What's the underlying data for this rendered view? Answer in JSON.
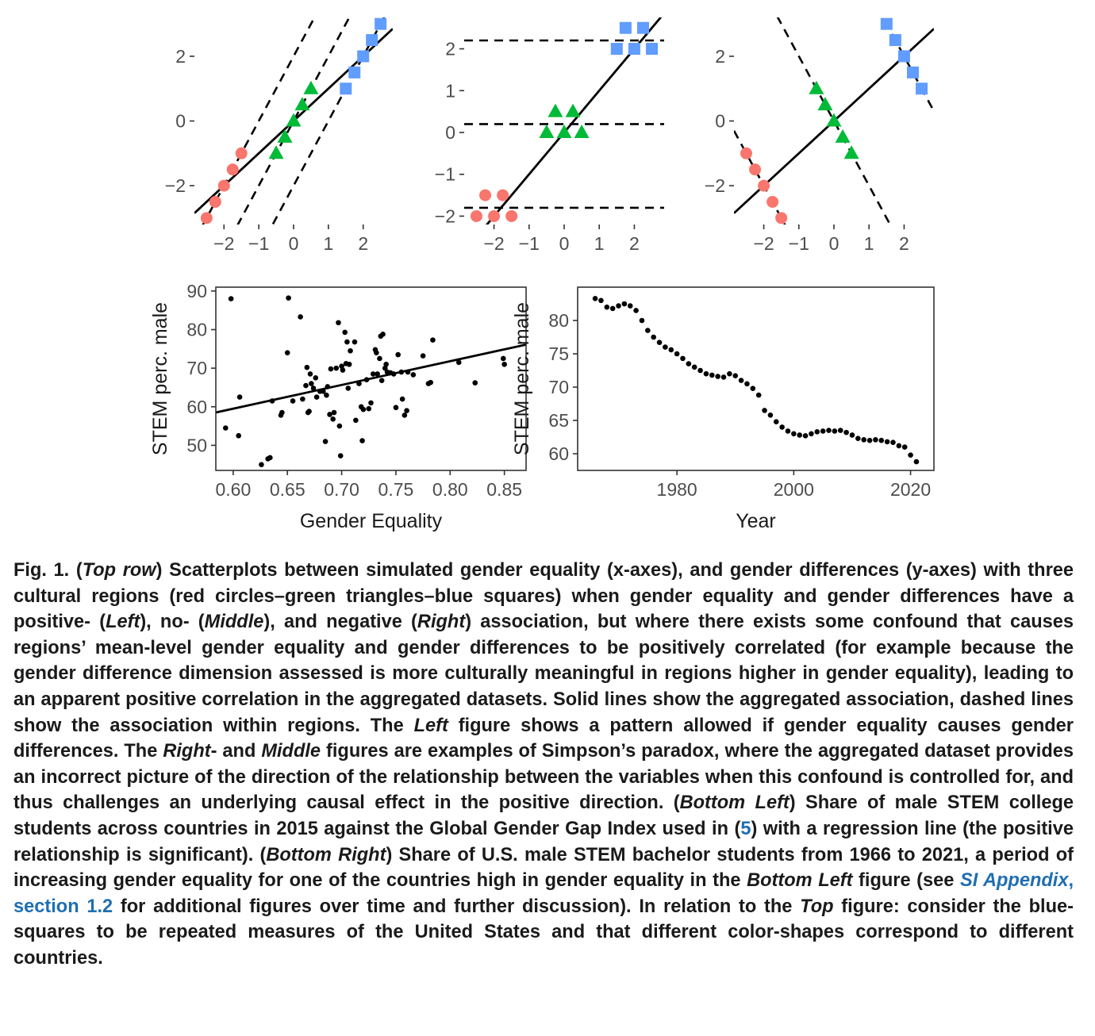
{
  "chart_data": [
    {
      "type": "scatter",
      "panel": "top-left",
      "title": "",
      "xlabel": "",
      "ylabel": "",
      "xlim": [
        -2.85,
        2.85
      ],
      "ylim": [
        -3.2,
        3.2
      ],
      "x_ticks": [
        "−2",
        "−1",
        "0",
        "1",
        "2"
      ],
      "x_tick_values": [
        -2,
        -1,
        0,
        1,
        2
      ],
      "y_ticks": [
        "−2",
        "0",
        "2"
      ],
      "y_tick_values": [
        -2,
        0,
        2
      ],
      "grid": false,
      "series": [
        {
          "shape": "circle",
          "color": "#f8766d",
          "x": [
            -2.5,
            -2.25,
            -2.0,
            -1.75,
            -1.5
          ],
          "y": [
            -3.0,
            -2.5,
            -2.0,
            -1.5,
            -1.0
          ]
        },
        {
          "shape": "triangle",
          "color": "#00ba38",
          "x": [
            -0.5,
            -0.25,
            0.0,
            0.25,
            0.5
          ],
          "y": [
            -1.0,
            -0.5,
            0.0,
            0.5,
            1.0
          ]
        },
        {
          "shape": "square",
          "color": "#619cff",
          "x": [
            1.5,
            1.75,
            2.0,
            2.25,
            2.5
          ],
          "y": [
            1.0,
            1.5,
            2.0,
            2.5,
            3.0
          ]
        }
      ],
      "solid_lines": [
        {
          "slope": 1.0,
          "intercept": 0.0
        }
      ],
      "dashed_lines": [
        {
          "slope": 2.0,
          "intercept": 2.0
        },
        {
          "slope": 2.0,
          "intercept": 0.0
        },
        {
          "slope": 2.0,
          "intercept": -2.0
        }
      ]
    },
    {
      "type": "scatter",
      "panel": "top-middle",
      "title": "",
      "xlabel": "",
      "ylabel": "",
      "xlim": [
        -2.85,
        2.85
      ],
      "ylim": [
        -2.2,
        2.75
      ],
      "x_ticks": [
        "−2",
        "−1",
        "0",
        "1",
        "2"
      ],
      "x_tick_values": [
        -2,
        -1,
        0,
        1,
        2
      ],
      "y_ticks": [
        "−2",
        "−1",
        "0",
        "1",
        "2"
      ],
      "y_tick_values": [
        -2,
        -1,
        0,
        1,
        2
      ],
      "grid": false,
      "series": [
        {
          "shape": "circle",
          "color": "#f8766d",
          "x": [
            -2.5,
            -2.25,
            -2.0,
            -1.75,
            -1.5
          ],
          "y": [
            -2.0,
            -1.5,
            -2.0,
            -1.5,
            -2.0
          ]
        },
        {
          "shape": "triangle",
          "color": "#00ba38",
          "x": [
            -0.5,
            -0.25,
            0.0,
            0.25,
            0.5
          ],
          "y": [
            0.0,
            0.5,
            0.0,
            0.5,
            0.0
          ]
        },
        {
          "shape": "square",
          "color": "#619cff",
          "x": [
            1.5,
            1.75,
            2.0,
            2.25,
            2.5
          ],
          "y": [
            2.0,
            2.5,
            2.0,
            2.5,
            2.0
          ]
        }
      ],
      "solid_lines": [
        {
          "slope": 1.0,
          "intercept": 0.0
        }
      ],
      "dashed_lines": [
        {
          "slope": 0.0,
          "intercept": -1.8
        },
        {
          "slope": 0.0,
          "intercept": 0.2
        },
        {
          "slope": 0.0,
          "intercept": 2.2
        }
      ]
    },
    {
      "type": "scatter",
      "panel": "top-right",
      "title": "",
      "xlabel": "",
      "ylabel": "",
      "xlim": [
        -2.85,
        2.85
      ],
      "ylim": [
        -3.2,
        3.2
      ],
      "x_ticks": [
        "−2",
        "−1",
        "0",
        "1",
        "2"
      ],
      "x_tick_values": [
        -2,
        -1,
        0,
        1,
        2
      ],
      "y_ticks": [
        "−2",
        "0",
        "2"
      ],
      "y_tick_values": [
        -2,
        0,
        2
      ],
      "grid": false,
      "series": [
        {
          "shape": "circle",
          "color": "#f8766d",
          "x": [
            -2.5,
            -2.25,
            -2.0,
            -1.75,
            -1.5
          ],
          "y": [
            -1.0,
            -1.5,
            -2.0,
            -2.5,
            -3.0
          ]
        },
        {
          "shape": "triangle",
          "color": "#00ba38",
          "x": [
            -0.5,
            -0.25,
            0.0,
            0.25,
            0.5
          ],
          "y": [
            1.0,
            0.5,
            0.0,
            -0.5,
            -1.0
          ]
        },
        {
          "shape": "square",
          "color": "#619cff",
          "x": [
            1.5,
            1.75,
            2.0,
            2.25,
            2.5
          ],
          "y": [
            3.0,
            2.5,
            2.0,
            1.5,
            1.0
          ]
        }
      ],
      "solid_lines": [
        {
          "slope": 1.0,
          "intercept": 0.0
        }
      ],
      "dashed_lines": [
        {
          "slope": -2.0,
          "intercept": -6.0
        },
        {
          "slope": -2.0,
          "intercept": 0.0
        },
        {
          "slope": -2.0,
          "intercept": 6.0
        }
      ]
    },
    {
      "type": "scatter",
      "panel": "bottom-left",
      "title": "",
      "xlabel": "Gender Equality",
      "ylabel": "STEM perc. male",
      "xlim": [
        0.584,
        0.87
      ],
      "ylim": [
        43.5,
        91
      ],
      "x_ticks": [
        "0.60",
        "0.65",
        "0.70",
        "0.75",
        "0.80",
        "0.85"
      ],
      "x_tick_values": [
        0.6,
        0.65,
        0.7,
        0.75,
        0.8,
        0.85
      ],
      "y_ticks": [
        "50",
        "60",
        "70",
        "80",
        "90"
      ],
      "y_tick_values": [
        50,
        60,
        70,
        80,
        90
      ],
      "grid": false,
      "series": [
        {
          "shape": "dot",
          "color": "#000000",
          "points": [
            [
              0.598,
              88.0
            ],
            [
              0.593,
              54.5
            ],
            [
              0.605,
              52.5
            ],
            [
              0.606,
              62.5
            ],
            [
              0.626,
              45.0
            ],
            [
              0.632,
              46.5
            ],
            [
              0.634,
              46.8
            ],
            [
              0.636,
              61.5
            ],
            [
              0.644,
              57.8
            ],
            [
              0.645,
              58.5
            ],
            [
              0.65,
              74.0
            ],
            [
              0.651,
              88.2
            ],
            [
              0.655,
              61.5
            ],
            [
              0.662,
              83.3
            ],
            [
              0.664,
              62.0
            ],
            [
              0.667,
              65.5
            ],
            [
              0.668,
              70.2
            ],
            [
              0.669,
              58.5
            ],
            [
              0.67,
              58.8
            ],
            [
              0.671,
              68.5
            ],
            [
              0.672,
              66.0
            ],
            [
              0.674,
              64.8
            ],
            [
              0.676,
              67.5
            ],
            [
              0.677,
              62.5
            ],
            [
              0.68,
              64.0
            ],
            [
              0.683,
              64.0
            ],
            [
              0.685,
              51.0
            ],
            [
              0.686,
              63.0
            ],
            [
              0.687,
              65.2
            ],
            [
              0.689,
              58.0
            ],
            [
              0.69,
              69.8
            ],
            [
              0.692,
              56.8
            ],
            [
              0.693,
              58.5
            ],
            [
              0.695,
              70.0
            ],
            [
              0.697,
              81.8
            ],
            [
              0.698,
              55.0
            ],
            [
              0.699,
              47.3
            ],
            [
              0.7,
              70.5
            ],
            [
              0.701,
              69.5
            ],
            [
              0.703,
              79.3
            ],
            [
              0.704,
              71.2
            ],
            [
              0.705,
              76.8
            ],
            [
              0.706,
              64.8
            ],
            [
              0.707,
              71.0
            ],
            [
              0.708,
              74.5
            ],
            [
              0.712,
              76.8
            ],
            [
              0.713,
              56.5
            ],
            [
              0.716,
              66.0
            ],
            [
              0.718,
              60.0
            ],
            [
              0.719,
              51.2
            ],
            [
              0.72,
              59.3
            ],
            [
              0.723,
              67.0
            ],
            [
              0.725,
              59.5
            ],
            [
              0.727,
              61.0
            ],
            [
              0.729,
              68.5
            ],
            [
              0.731,
              74.8
            ],
            [
              0.732,
              74.0
            ],
            [
              0.733,
              68.5
            ],
            [
              0.735,
              72.5
            ],
            [
              0.736,
              78.3
            ],
            [
              0.737,
              66.8
            ],
            [
              0.738,
              78.8
            ],
            [
              0.74,
              70.0
            ],
            [
              0.741,
              71.0
            ],
            [
              0.742,
              69.0
            ],
            [
              0.745,
              68.8
            ],
            [
              0.748,
              68.5
            ],
            [
              0.75,
              59.8
            ],
            [
              0.752,
              73.5
            ],
            [
              0.755,
              69.0
            ],
            [
              0.756,
              62.0
            ],
            [
              0.758,
              57.8
            ],
            [
              0.76,
              59.0
            ],
            [
              0.761,
              69.0
            ],
            [
              0.766,
              68.3
            ],
            [
              0.775,
              73.2
            ],
            [
              0.78,
              66.0
            ],
            [
              0.782,
              66.3
            ],
            [
              0.784,
              77.3
            ],
            [
              0.808,
              71.5
            ],
            [
              0.823,
              66.2
            ],
            [
              0.849,
              72.5
            ],
            [
              0.85,
              71.0
            ]
          ]
        }
      ],
      "solid_lines": [
        {
          "slope": 61.5,
          "intercept": 22.6
        }
      ]
    },
    {
      "type": "scatter",
      "panel": "bottom-right",
      "title": "",
      "xlabel": "Year",
      "ylabel": "STEM perc. male",
      "xlim": [
        1963,
        2024
      ],
      "ylim": [
        57.5,
        85
      ],
      "x_ticks": [
        "1980",
        "2000",
        "2020"
      ],
      "x_tick_values": [
        1980,
        2000,
        2020
      ],
      "y_ticks": [
        "60",
        "65",
        "70",
        "75",
        "80"
      ],
      "y_tick_values": [
        60,
        65,
        70,
        75,
        80
      ],
      "grid": false,
      "series": [
        {
          "shape": "dot",
          "color": "#000000",
          "points": [
            [
              1966,
              83.3
            ],
            [
              1967,
              83.0
            ],
            [
              1968,
              82.0
            ],
            [
              1969,
              81.8
            ],
            [
              1970,
              82.2
            ],
            [
              1971,
              82.5
            ],
            [
              1972,
              82.2
            ],
            [
              1973,
              81.5
            ],
            [
              1974,
              80.0
            ],
            [
              1975,
              78.5
            ],
            [
              1976,
              77.5
            ],
            [
              1977,
              76.7
            ],
            [
              1978,
              76.0
            ],
            [
              1979,
              75.6
            ],
            [
              1980,
              75.0
            ],
            [
              1981,
              74.3
            ],
            [
              1982,
              73.5
            ],
            [
              1983,
              73.0
            ],
            [
              1984,
              72.5
            ],
            [
              1985,
              72.0
            ],
            [
              1986,
              71.8
            ],
            [
              1987,
              71.6
            ],
            [
              1988,
              71.5
            ],
            [
              1989,
              72.0
            ],
            [
              1990,
              71.7
            ],
            [
              1991,
              71.0
            ],
            [
              1992,
              70.5
            ],
            [
              1993,
              69.8
            ],
            [
              1994,
              68.8
            ],
            [
              1995,
              66.5
            ],
            [
              1996,
              65.8
            ],
            [
              1997,
              64.8
            ],
            [
              1998,
              64.0
            ],
            [
              1999,
              63.4
            ],
            [
              2000,
              63.0
            ],
            [
              2001,
              62.8
            ],
            [
              2002,
              62.7
            ],
            [
              2003,
              63.0
            ],
            [
              2004,
              63.3
            ],
            [
              2005,
              63.4
            ],
            [
              2006,
              63.5
            ],
            [
              2007,
              63.4
            ],
            [
              2008,
              63.5
            ],
            [
              2009,
              63.2
            ],
            [
              2010,
              62.8
            ],
            [
              2011,
              62.3
            ],
            [
              2012,
              62.1
            ],
            [
              2013,
              62.0
            ],
            [
              2014,
              62.1
            ],
            [
              2015,
              62.0
            ],
            [
              2016,
              61.8
            ],
            [
              2017,
              61.7
            ],
            [
              2018,
              61.2
            ],
            [
              2019,
              61.0
            ],
            [
              2020,
              59.8
            ],
            [
              2021,
              58.8
            ]
          ]
        }
      ]
    }
  ],
  "caption": {
    "fig_label": "Fig. 1.",
    "t01": " (",
    "e01": "Top row",
    "t02": ") Scatterplots between simulated gender equality (x-axes), and gender differences (y-axes) with three cultural regions (red circles–green triangles–blue squares) when gender equality and gender differences have a positive- (",
    "e02": "Left",
    "t03": "), no- (",
    "e03": "Middle",
    "t04": "), and negative (",
    "e04": "Right",
    "t05": ") association, but where there exists some confound that causes regions’ mean-level gender equality and gender differences to be positively correlated (for example because the gender difference dimension assessed is more culturally meaningful in regions higher in gender equality), leading to an apparent positive correlation in the aggregated datasets. Solid lines show the aggregated association, dashed lines show the association within regions. The ",
    "e05": "Left",
    "t06": " figure shows a pattern allowed if gender equality causes gender differences. The ",
    "e06": "Right",
    "t07": "- and ",
    "e07": "Middle",
    "t08": " figures are examples of Simpson’s paradox, where the aggregated dataset provides an incorrect picture of the direction of the relationship between the variables when this confound is controlled for, and thus challenges an underlying causal effect in the positive direction. (",
    "e08": "Bottom Left",
    "t09": ") Share of male STEM college students across countries in 2015 against the Global Gender Gap Index used in (",
    "ref": "5",
    "t10": ") with a regression line (the positive relationship is significant). (",
    "e09": "Bottom Right",
    "t11": ") Share of U.S. male STEM bachelor students from 1966 to 2021, a period of increasing gender equality for one of the countries high in gender equality in the ",
    "e10": "Bottom Left",
    "t12": " figure (see ",
    "link_em": "SI Appendix",
    "link_rest": ", section 1.2",
    "t13": " for additional figures over time and further discussion). In relation to the ",
    "e11": "Top",
    "t14": " figure: consider the blue-squares to be repeated measures of the United States and that different color-shapes correspond to different countries."
  }
}
